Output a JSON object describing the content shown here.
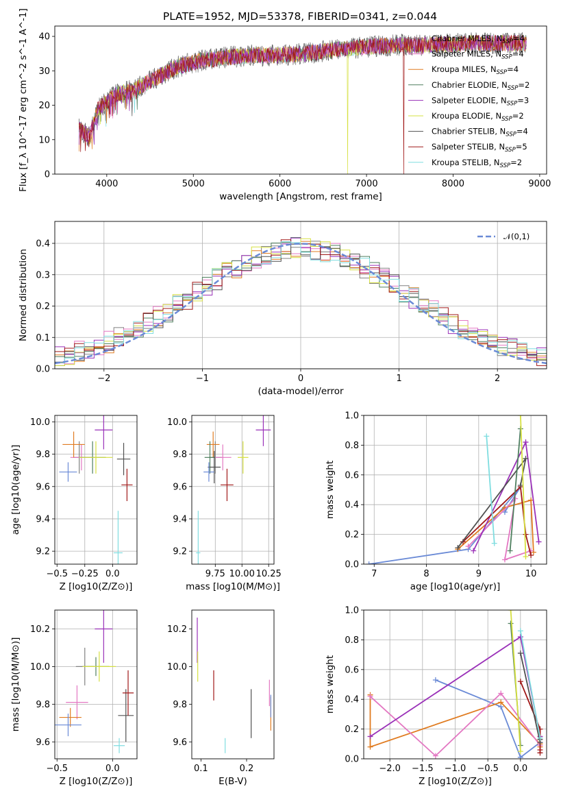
{
  "page": {
    "title": "PLATE=1952, MJD=53378, FIBERID=0341, z=0.044"
  },
  "models": [
    {
      "label": "Chabrier MILES, N_SSP=4",
      "color": "#808080"
    },
    {
      "label": "Salpeter MILES, N_SSP=4",
      "color": "#e377c2"
    },
    {
      "label": "Kroupa MILES, N_SSP=4",
      "color": "#e07b20"
    },
    {
      "label": "Chabrier ELODIE, N_SSP=2",
      "color": "#4f7f5f"
    },
    {
      "label": "Salpeter ELODIE, N_SSP=3",
      "color": "#9a30b8"
    },
    {
      "label": "Kroupa ELODIE, N_SSP=2",
      "color": "#d6e040"
    },
    {
      "label": "Chabrier STELIB, N_SSP=4",
      "color": "#505050"
    },
    {
      "label": "Salpeter STELIB, N_SSP=5",
      "color": "#a01818"
    },
    {
      "label": "Kroupa STELIB, N_SSP=2",
      "color": "#7fdde0"
    }
  ],
  "chart_data": [
    {
      "id": "spectrum",
      "type": "line",
      "xlabel": "wavelength [Angstrom, rest frame]",
      "ylabel": "Flux [f_λ 10^-17 erg cm^-2 s^-1 A^-1]",
      "xlim": [
        3400,
        9080
      ],
      "ylim": [
        0,
        43
      ],
      "xticks": [
        4000,
        5000,
        6000,
        7000,
        8000,
        9000
      ],
      "yticks": [
        0,
        10,
        20,
        30,
        40
      ],
      "grid": false,
      "legend": "right",
      "trend_x": [
        3680,
        3800,
        3900,
        4000,
        4100,
        4300,
        4500,
        4800,
        5100,
        5400,
        5700,
        6000,
        6300,
        6600,
        7000,
        7400,
        7800,
        8200,
        8600,
        8850
      ],
      "trend_y": [
        13,
        11,
        19,
        21,
        23,
        24.5,
        27,
        31,
        33,
        34,
        34.5,
        34.5,
        35,
        36,
        37,
        37.5,
        37.5,
        38,
        38,
        38
      ],
      "drops": [
        {
          "x": 6780,
          "model": 5
        },
        {
          "x": 7430,
          "model": 7
        }
      ]
    },
    {
      "id": "residuals",
      "type": "histogram",
      "xlabel": "(data-model)/error",
      "ylabel": "Normed distribution",
      "xlim": [
        -2.5,
        2.5
      ],
      "ylim": [
        0,
        0.47
      ],
      "xticks": [
        -2,
        -1,
        0,
        1,
        2
      ],
      "yticks": [
        0.0,
        0.1,
        0.2,
        0.3,
        0.4
      ],
      "grid": true,
      "bin_width": 0.1,
      "reference_label": "𝒩(0,1)",
      "reference_color": "#6a8ad6",
      "legend": "top-right"
    },
    {
      "id": "age-vs-Z",
      "type": "scatter",
      "xlabel": "Z [log10(Z/Z⊙)]",
      "ylabel": "age [log10(age/yr)]",
      "xlim": [
        -0.52,
        0.22
      ],
      "ylim": [
        9.12,
        10.04
      ],
      "xticks": [
        -0.5,
        -0.25,
        0.0
      ],
      "yticks": [
        9.2,
        9.4,
        9.6,
        9.8,
        10.0
      ],
      "grid": true,
      "points": [
        {
          "model": 0,
          "x": -0.3,
          "y": 9.78,
          "ex": 0.05,
          "ey": 0.1
        },
        {
          "model": 1,
          "x": -0.28,
          "y": 9.78,
          "ex": 0.1,
          "ey": 0.08
        },
        {
          "model": 2,
          "x": -0.35,
          "y": 9.86,
          "ex": 0.1,
          "ey": 0.08
        },
        {
          "model": 3,
          "x": -0.18,
          "y": 9.78,
          "ex": 0.12,
          "ey": 0.1
        },
        {
          "model": 4,
          "x": -0.08,
          "y": 9.95,
          "ex": 0.08,
          "ey": 0.12
        },
        {
          "model": 5,
          "x": -0.15,
          "y": 9.78,
          "ex": 0.15,
          "ey": 0.1
        },
        {
          "model": 6,
          "x": 0.1,
          "y": 9.77,
          "ex": 0.06,
          "ey": 0.1
        },
        {
          "model": 7,
          "x": 0.13,
          "y": 9.61,
          "ex": 0.05,
          "ey": 0.1
        },
        {
          "model": 8,
          "x": 0.05,
          "y": 9.19,
          "ex": 0.04,
          "ey": 0.26
        },
        {
          "model": 9,
          "x": -0.4,
          "y": 9.69,
          "ex": 0.08,
          "ey": 0.06
        }
      ]
    },
    {
      "id": "age-vs-mass",
      "type": "scatter",
      "xlabel": "mass [log10(M/M⊙)]",
      "ylabel": "",
      "xlim": [
        9.53,
        10.3
      ],
      "ylim": [
        9.12,
        10.04
      ],
      "xticks": [
        9.75,
        10.0,
        10.25
      ],
      "xticklabels": [
        "9.75",
        "10.00",
        "10.25"
      ],
      "yticks": [
        9.2,
        9.4,
        9.6,
        9.8,
        10.0
      ],
      "grid": true,
      "points": [
        {
          "model": 0,
          "x": 9.75,
          "y": 9.78,
          "ex": 0.06,
          "ey": 0.1
        },
        {
          "model": 1,
          "x": 9.82,
          "y": 9.78,
          "ex": 0.08,
          "ey": 0.08
        },
        {
          "model": 2,
          "x": 9.73,
          "y": 9.86,
          "ex": 0.06,
          "ey": 0.08
        },
        {
          "model": 3,
          "x": 9.7,
          "y": 9.78,
          "ex": 0.05,
          "ey": 0.1
        },
        {
          "model": 4,
          "x": 10.2,
          "y": 9.95,
          "ex": 0.07,
          "ey": 0.1
        },
        {
          "model": 5,
          "x": 10.01,
          "y": 9.78,
          "ex": 0.05,
          "ey": 0.1
        },
        {
          "model": 6,
          "x": 9.74,
          "y": 9.72,
          "ex": 0.06,
          "ey": 0.1
        },
        {
          "model": 7,
          "x": 9.86,
          "y": 9.61,
          "ex": 0.06,
          "ey": 0.1
        },
        {
          "model": 8,
          "x": 9.59,
          "y": 9.19,
          "ex": 0.02,
          "ey": 0.26
        },
        {
          "model": 9,
          "x": 9.69,
          "y": 9.69,
          "ex": 0.05,
          "ey": 0.06
        }
      ]
    },
    {
      "id": "weight-vs-age",
      "type": "line",
      "xlabel": "age [log10(age/yr)]",
      "ylabel": "mass weight",
      "xlim": [
        6.8,
        10.3
      ],
      "ylim": [
        0,
        1.0
      ],
      "xticks": [
        7,
        8,
        9,
        10
      ],
      "yticks": [
        0.0,
        0.2,
        0.4,
        0.6,
        0.8,
        1.0
      ],
      "grid": true,
      "series": [
        {
          "model": 9,
          "x": [
            6.9,
            8.8,
            9.8,
            9.5
          ],
          "y": [
            0.0,
            0.1,
            0.52,
            0.35
          ]
        },
        {
          "model": 2,
          "x": [
            8.6,
            9.5,
            10.0,
            10.05
          ],
          "y": [
            0.1,
            0.38,
            0.43,
            0.08
          ]
        },
        {
          "model": 1,
          "x": [
            8.8,
            9.7,
            9.5,
            10.0
          ],
          "y": [
            0.12,
            0.44,
            0.03,
            0.09
          ]
        },
        {
          "model": 4,
          "x": [
            8.9,
            9.9,
            10.15
          ],
          "y": [
            0.09,
            0.82,
            0.15
          ]
        },
        {
          "model": 7,
          "x": [
            8.7,
            9.8,
            9.9,
            10.0
          ],
          "y": [
            0.15,
            0.52,
            0.2,
            0.06
          ]
        },
        {
          "model": 6,
          "x": [
            8.6,
            9.9,
            9.8
          ],
          "y": [
            0.11,
            0.71,
            0.53
          ]
        },
        {
          "model": 3,
          "x": [
            9.6,
            9.8
          ],
          "y": [
            0.09,
            0.91
          ]
        },
        {
          "model": 5,
          "x": [
            9.8,
            9.9
          ],
          "y": [
            1.0,
            0.05
          ]
        },
        {
          "model": 8,
          "x": [
            9.15,
            9.3
          ],
          "y": [
            0.86,
            0.14
          ]
        }
      ]
    },
    {
      "id": "mass-vs-Z",
      "type": "scatter",
      "xlabel": "Z [log10(Z/Z⊙)]",
      "ylabel": "mass [log10(M/M⊙)]",
      "xlim": [
        -0.52,
        0.22
      ],
      "ylim": [
        9.51,
        10.3
      ],
      "xticks": [
        -0.5,
        0.0
      ],
      "yticks": [
        9.6,
        9.8,
        10.0,
        10.2
      ],
      "grid": true,
      "points": [
        {
          "model": 0,
          "x": -0.25,
          "y": 10.0,
          "ex": 0.08,
          "ey": 0.1
        },
        {
          "model": 1,
          "x": -0.32,
          "y": 9.81,
          "ex": 0.1,
          "ey": 0.09
        },
        {
          "model": 2,
          "x": -0.38,
          "y": 9.73,
          "ex": 0.1,
          "ey": 0.05
        },
        {
          "model": 3,
          "x": -0.15,
          "y": 10.0,
          "ex": 0.12,
          "ey": 0.05
        },
        {
          "model": 4,
          "x": -0.08,
          "y": 10.2,
          "ex": 0.08,
          "ey": 0.18
        },
        {
          "model": 5,
          "x": -0.12,
          "y": 10.0,
          "ex": 0.15,
          "ey": 0.08
        },
        {
          "model": 6,
          "x": 0.12,
          "y": 9.74,
          "ex": 0.07,
          "ey": 0.14
        },
        {
          "model": 7,
          "x": 0.14,
          "y": 9.86,
          "ex": 0.05,
          "ey": 0.12
        },
        {
          "model": 8,
          "x": 0.06,
          "y": 9.58,
          "ex": 0.05,
          "ey": 0.04
        },
        {
          "model": 9,
          "x": -0.4,
          "y": 9.69,
          "ex": 0.12,
          "ey": 0.06
        }
      ]
    },
    {
      "id": "mass-vs-ebv",
      "type": "scatter",
      "xlabel": "E(B-V)",
      "ylabel": "",
      "xlim": [
        0.08,
        0.26
      ],
      "ylim": [
        9.51,
        10.3
      ],
      "xticks": [
        0.1,
        0.2
      ],
      "yticks": [
        9.6,
        9.8,
        10.0,
        10.2
      ],
      "grid": false,
      "points": [
        {
          "model": 4,
          "x": 0.092,
          "y": 10.14,
          "ex": 0,
          "ey": 0.12
        },
        {
          "model": 5,
          "x": 0.093,
          "y": 10.0,
          "ex": 0,
          "ey": 0.08
        },
        {
          "model": 7,
          "x": 0.128,
          "y": 9.9,
          "ex": 0,
          "ey": 0.08
        },
        {
          "model": 8,
          "x": 0.153,
          "y": 9.58,
          "ex": 0,
          "ey": 0.04
        },
        {
          "model": 6,
          "x": 0.21,
          "y": 9.75,
          "ex": 0,
          "ey": 0.13
        },
        {
          "model": 1,
          "x": 0.25,
          "y": 9.86,
          "ex": 0,
          "ey": 0.07
        },
        {
          "model": 2,
          "x": 0.253,
          "y": 9.75,
          "ex": 0,
          "ey": 0.09
        },
        {
          "model": 9,
          "x": 0.253,
          "y": 9.79,
          "ex": 0,
          "ey": 0.06
        }
      ]
    },
    {
      "id": "weight-vs-Z",
      "type": "line",
      "xlabel": "Z [log10(Z/Z⊙)]",
      "ylabel": "mass weight",
      "xlim": [
        -2.4,
        0.4
      ],
      "ylim": [
        0,
        1.0
      ],
      "xticks": [
        -2.0,
        -1.5,
        -1.0,
        -0.5,
        0.0
      ],
      "yticks": [
        0.0,
        0.2,
        0.4,
        0.6,
        0.8,
        1.0
      ],
      "grid": true,
      "series": [
        {
          "model": 9,
          "x": [
            -1.3,
            -0.3,
            0.0,
            0.3
          ],
          "y": [
            0.53,
            0.35,
            0.01,
            0.11
          ]
        },
        {
          "model": 2,
          "x": [
            -2.3,
            -2.3,
            -0.3,
            0.3,
            0.3
          ],
          "y": [
            0.43,
            0.08,
            0.38,
            0.1,
            0.08
          ]
        },
        {
          "model": 1,
          "x": [
            -2.3,
            -1.3,
            -0.3,
            0.3
          ],
          "y": [
            0.42,
            0.02,
            0.44,
            0.09
          ]
        },
        {
          "model": 4,
          "x": [
            -2.3,
            0.0,
            0.3
          ],
          "y": [
            0.15,
            0.82,
            0.15
          ]
        },
        {
          "model": 7,
          "x": [
            0.0,
            0.3,
            0.3,
            0.3
          ],
          "y": [
            0.52,
            0.2,
            0.06,
            0.04
          ]
        },
        {
          "model": 6,
          "x": [
            0.0,
            0.3,
            0.3
          ],
          "y": [
            0.71,
            0.11,
            0.13
          ]
        },
        {
          "model": 3,
          "x": [
            -0.15,
            0.0
          ],
          "y": [
            0.91,
            0.09
          ]
        },
        {
          "model": 5,
          "x": [
            -0.15,
            0.0
          ],
          "y": [
            1.0,
            0.05
          ]
        },
        {
          "model": 8,
          "x": [
            0.0,
            0.3
          ],
          "y": [
            0.86,
            0.14
          ]
        }
      ]
    }
  ]
}
